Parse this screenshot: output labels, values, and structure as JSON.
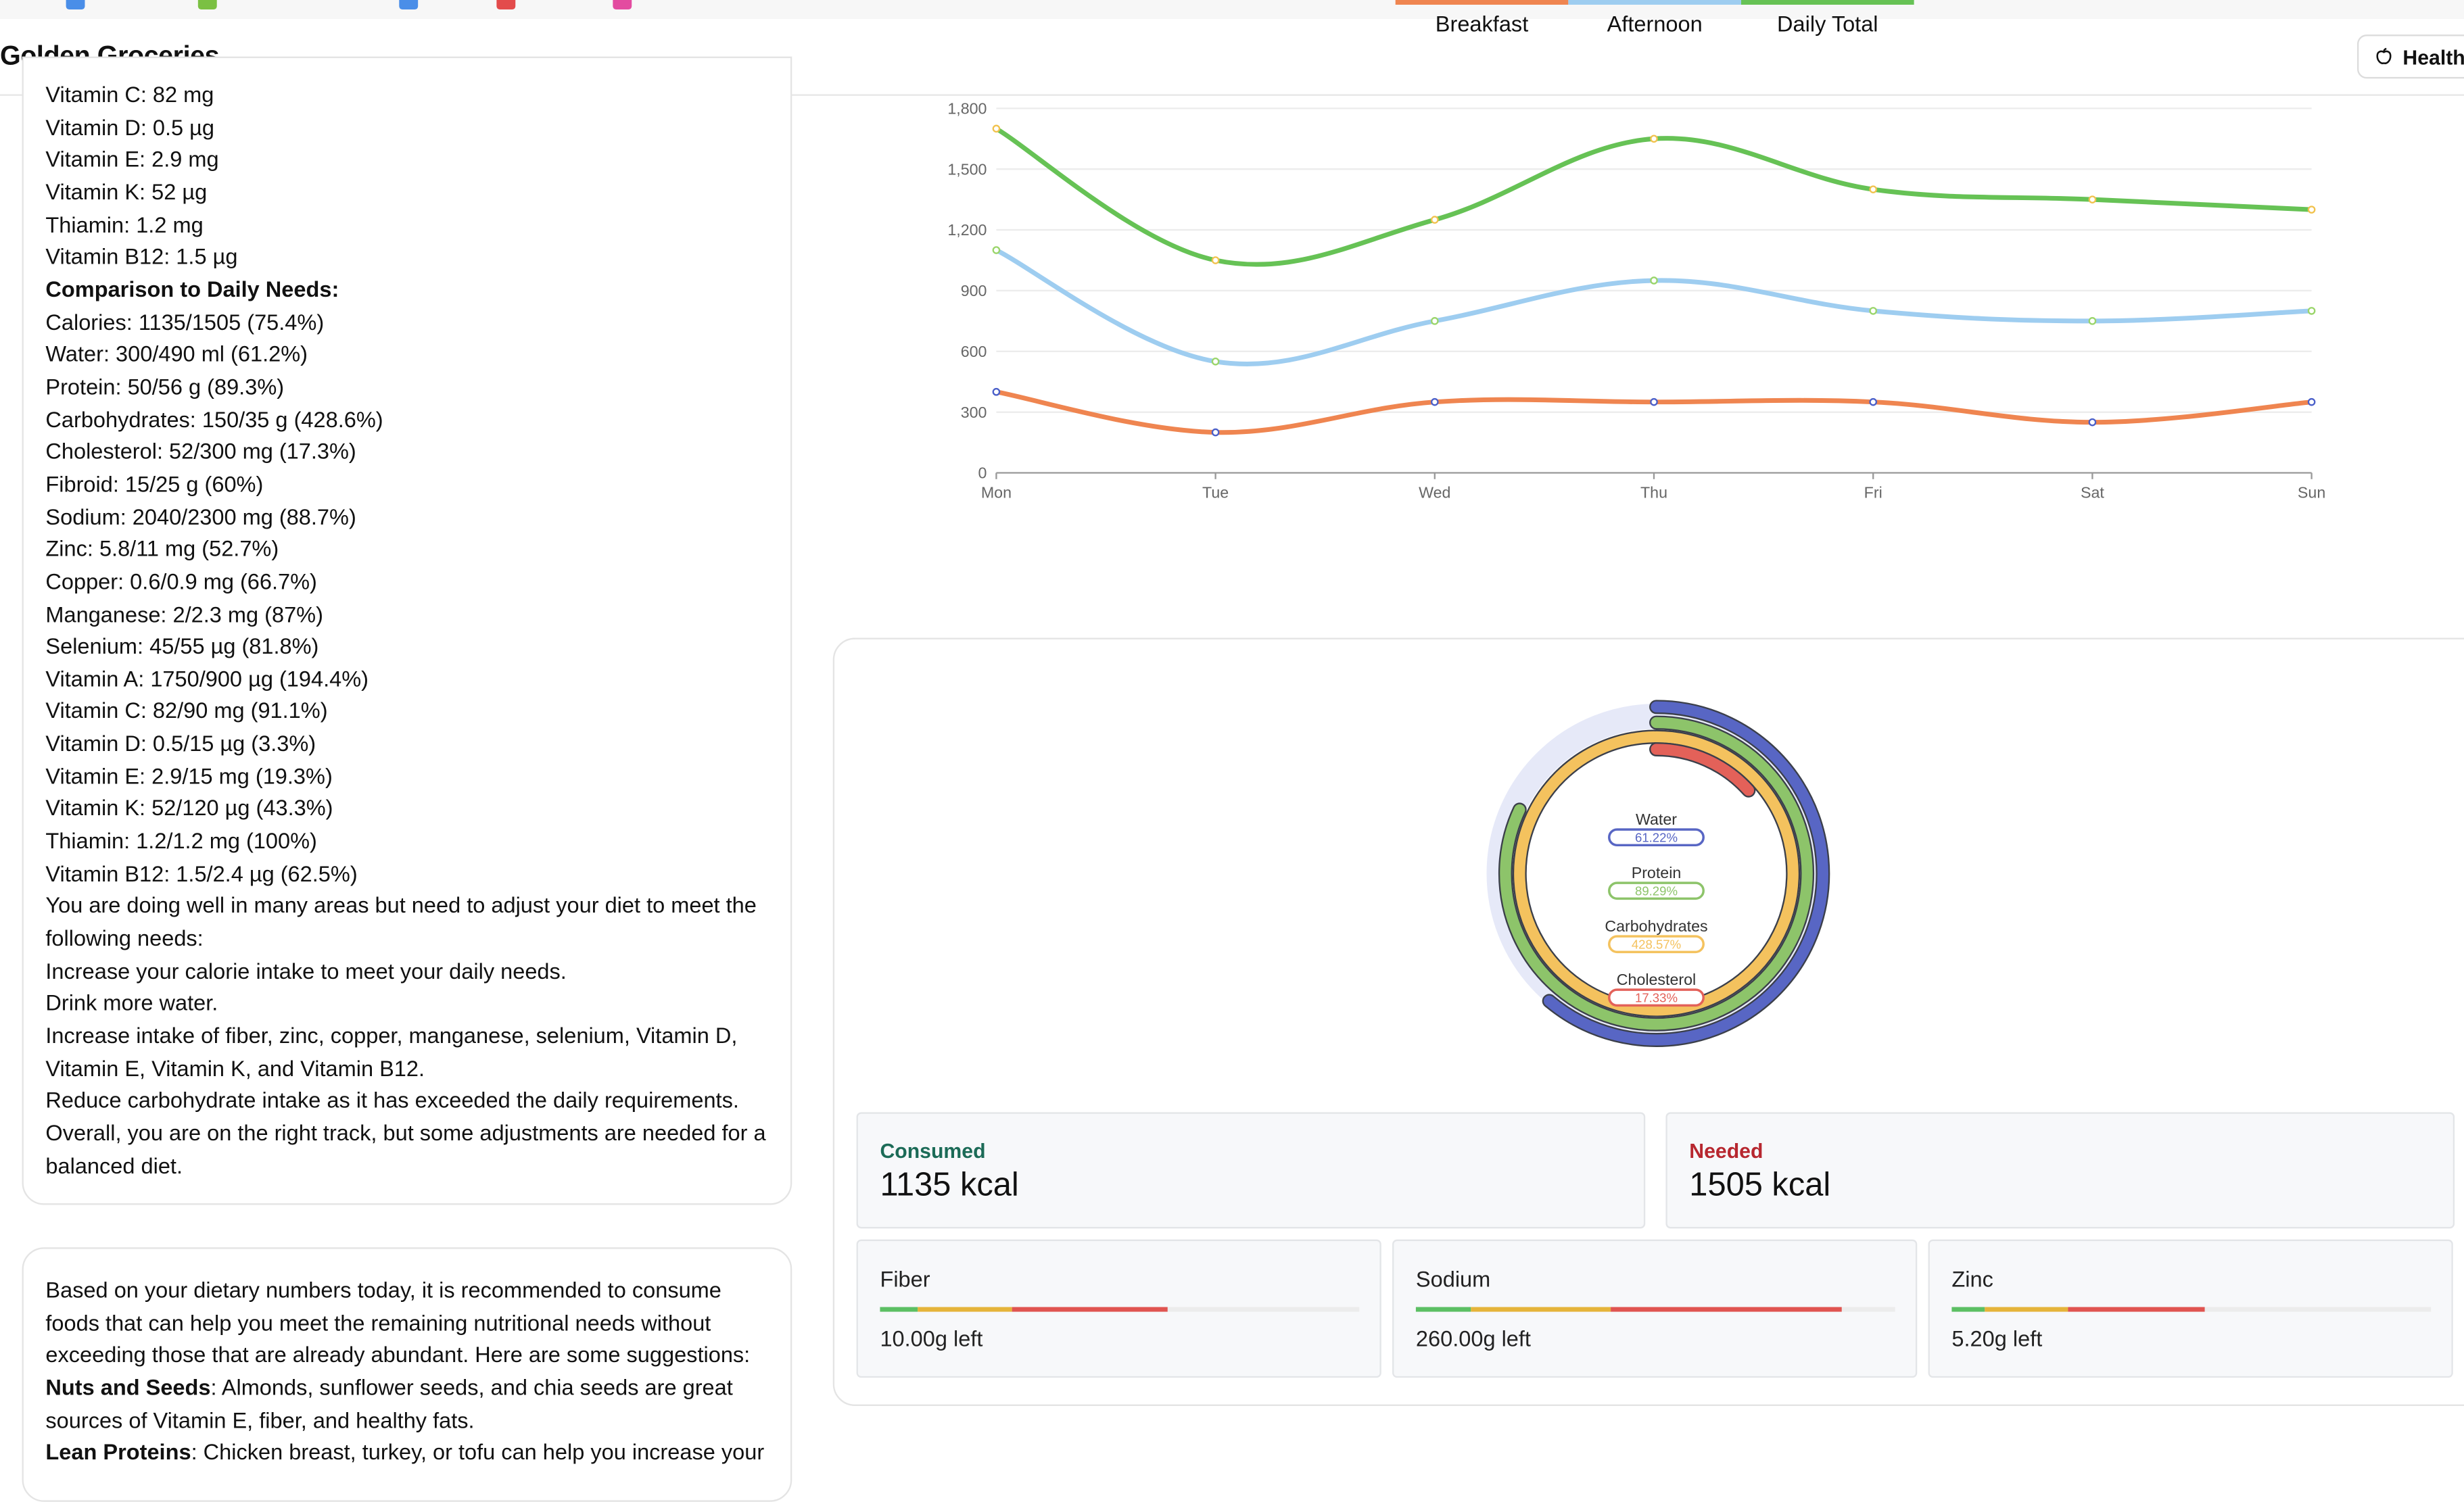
{
  "app": {
    "title": "Golden Groceries",
    "health_button": "Health"
  },
  "nutrition_lines": [
    {
      "text": "Vitamin C: 82 mg",
      "bold": false
    },
    {
      "text": "Vitamin D: 0.5 µg",
      "bold": false
    },
    {
      "text": "Vitamin E: 2.9 mg",
      "bold": false
    },
    {
      "text": "Vitamin K: 52 µg",
      "bold": false
    },
    {
      "text": "Thiamin: 1.2 mg",
      "bold": false
    },
    {
      "text": "Vitamin B12: 1.5 µg",
      "bold": false
    },
    {
      "text": "Comparison to Daily Needs:",
      "bold": true
    },
    {
      "text": "Calories: 1135/1505 (75.4%)",
      "bold": false
    },
    {
      "text": "Water: 300/490 ml (61.2%)",
      "bold": false
    },
    {
      "text": "Protein: 50/56 g (89.3%)",
      "bold": false
    },
    {
      "text": "Carbohydrates: 150/35 g (428.6%)",
      "bold": false
    },
    {
      "text": "Cholesterol: 52/300 mg (17.3%)",
      "bold": false
    },
    {
      "text": "Fibroid: 15/25 g (60%)",
      "bold": false
    },
    {
      "text": "Sodium: 2040/2300 mg (88.7%)",
      "bold": false
    },
    {
      "text": "Zinc: 5.8/11 mg (52.7%)",
      "bold": false
    },
    {
      "text": "Copper: 0.6/0.9 mg (66.7%)",
      "bold": false
    },
    {
      "text": "Manganese: 2/2.3 mg (87%)",
      "bold": false
    },
    {
      "text": "Selenium: 45/55 µg (81.8%)",
      "bold": false
    },
    {
      "text": "Vitamin A: 1750/900 µg (194.4%)",
      "bold": false
    },
    {
      "text": "Vitamin C: 82/90 mg (91.1%)",
      "bold": false
    },
    {
      "text": "Vitamin D: 0.5/15 µg (3.3%)",
      "bold": false
    },
    {
      "text": "Vitamin E: 2.9/15 mg (19.3%)",
      "bold": false
    },
    {
      "text": "Vitamin K: 52/120 µg (43.3%)",
      "bold": false
    },
    {
      "text": "Thiamin: 1.2/1.2 mg (100%)",
      "bold": false
    },
    {
      "text": "Vitamin B12: 1.5/2.4 µg (62.5%)",
      "bold": false
    },
    {
      "text": "You are doing well in many areas but need to adjust your diet to meet the following needs:",
      "bold": false,
      "wrap": true
    },
    {
      "text": "Increase your calorie intake to meet your daily needs.",
      "bold": false
    },
    {
      "text": "Drink more water.",
      "bold": false
    },
    {
      "text": "Increase intake of fiber, zinc, copper, manganese, selenium, Vitamin D, Vitamin E, Vitamin K, and Vitamin B12.",
      "bold": false,
      "wrap": true
    },
    {
      "text": "Reduce carbohydrate intake as it has exceeded the daily requirements.",
      "bold": false
    },
    {
      "text": "Overall, you are on the right track, but some adjustments are needed for a balanced diet.",
      "bold": false,
      "wrap": true
    }
  ],
  "recommendation": {
    "intro": "Based on your dietary numbers today, it is recommended to consume foods that can help you meet the remaining nutritional needs without exceeding those that are already abundant. Here are some suggestions:",
    "item1_bold": "Nuts and Seeds",
    "item1_rest": ": Almonds, sunflower seeds, and chia seeds are great sources of Vitamin E, fiber, and healthy fats.",
    "item2_bold": "Lean Proteins",
    "item2_rest": ": Chicken breast, turkey, or tofu can help you increase your"
  },
  "chart_data": {
    "type": "line",
    "categories": [
      "Mon",
      "Tue",
      "Wed",
      "Thu",
      "Fri",
      "Sat",
      "Sun"
    ],
    "ylim": [
      0,
      1800
    ],
    "yticks": [
      "0",
      "300",
      "600",
      "900",
      "1,200",
      "1,500",
      "1,800"
    ],
    "grid": true,
    "legend_position": "bottom",
    "series": [
      {
        "name": "Breakfast",
        "color": "#ef8550",
        "values": [
          400,
          200,
          350,
          350,
          350,
          250,
          350
        ]
      },
      {
        "name": "Afternoon",
        "color": "#9ecdf0",
        "values": [
          1100,
          550,
          750,
          950,
          800,
          750,
          800
        ]
      },
      {
        "name": "Daily Total",
        "color": "#66c255",
        "values": [
          1700,
          1050,
          1250,
          1650,
          1400,
          1350,
          1300
        ]
      }
    ]
  },
  "ring_chart": {
    "items": [
      {
        "name": "Water",
        "label": "61.22%",
        "value": 61.22,
        "color": "#5866c4"
      },
      {
        "name": "Protein",
        "label": "89.29%",
        "value": 89.29,
        "color": "#8dc46a"
      },
      {
        "name": "Carbohydrates",
        "label": "428.57%",
        "value": 428.57,
        "color": "#f4c25e"
      },
      {
        "name": "Cholesterol",
        "label": "17.33%",
        "value": 17.33,
        "color": "#e36159"
      }
    ]
  },
  "consumed": {
    "label": "Consumed",
    "value": "1135 kcal",
    "color": "#1c6b57"
  },
  "needed": {
    "label": "Needed",
    "value": "1505 kcal",
    "color": "#b7272f"
  },
  "minerals": [
    {
      "name": "Fiber",
      "left": "10.00g left",
      "fill": 0.6
    },
    {
      "name": "Sodium",
      "left": "260.00g left",
      "fill": 0.887
    },
    {
      "name": "Zinc",
      "left": "5.20g left",
      "fill": 0.527
    }
  ]
}
